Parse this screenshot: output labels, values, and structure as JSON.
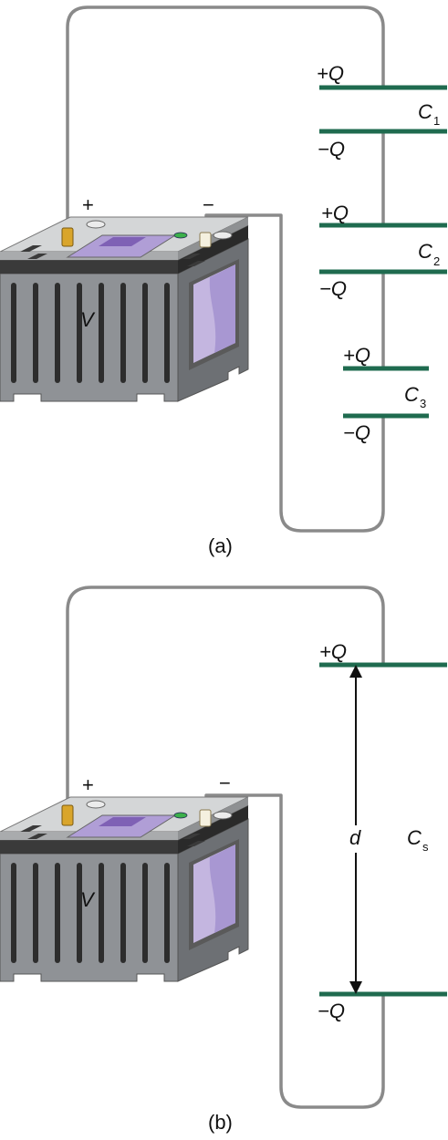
{
  "colors": {
    "plate": "#1f6b4f",
    "wire": "#8a8a8a",
    "battery_body": "#8f9296",
    "battery_dark": "#3a3a3a",
    "battery_top": "#c9cbcc",
    "window": "#b8a8d8",
    "terminal": "#d9a52b"
  },
  "panel_a": {
    "caption": "(a)",
    "battery": {
      "positive": "+",
      "negative": "−",
      "voltage": "V"
    },
    "capacitors": [
      {
        "top_charge": "+Q",
        "bottom_charge": "−Q",
        "name": "C",
        "subscript": "1"
      },
      {
        "top_charge": "+Q",
        "bottom_charge": "−Q",
        "name": "C",
        "subscript": "2"
      },
      {
        "top_charge": "+Q",
        "bottom_charge": "−Q",
        "name": "C",
        "subscript": "3"
      }
    ]
  },
  "panel_b": {
    "caption": "(b)",
    "battery": {
      "positive": "+",
      "negative": "−",
      "voltage": "V"
    },
    "capacitor": {
      "top_charge": "+Q",
      "bottom_charge": "−Q",
      "separation": "d",
      "name": "C",
      "subscript": "s"
    }
  }
}
